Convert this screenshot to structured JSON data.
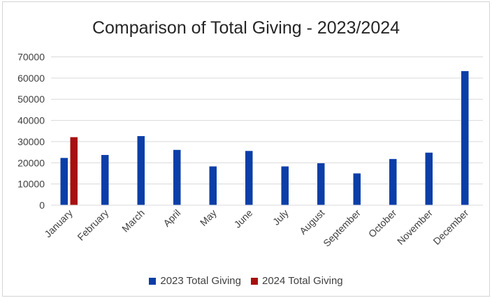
{
  "chart_data": {
    "type": "bar",
    "title": "Comparison of Total Giving - 2023/2024",
    "categories": [
      "January",
      "February",
      "March",
      "April",
      "May",
      "June",
      "July",
      "August",
      "September",
      "October",
      "November",
      "December"
    ],
    "series": [
      {
        "name": "2023 Total Giving",
        "color": "#0b3ea8",
        "values": [
          22300,
          23700,
          32600,
          26100,
          18300,
          25600,
          18300,
          19800,
          15000,
          21800,
          24800,
          63300
        ]
      },
      {
        "name": "2024 Total Giving",
        "color": "#a80f0f",
        "values": [
          32100,
          null,
          null,
          null,
          null,
          null,
          null,
          null,
          null,
          null,
          null,
          null
        ]
      }
    ],
    "ylim": [
      0,
      70000
    ],
    "yticks": [
      0,
      10000,
      20000,
      30000,
      40000,
      50000,
      60000,
      70000
    ],
    "xlabel": "",
    "ylabel": "",
    "grid": true,
    "legend_position": "bottom"
  }
}
